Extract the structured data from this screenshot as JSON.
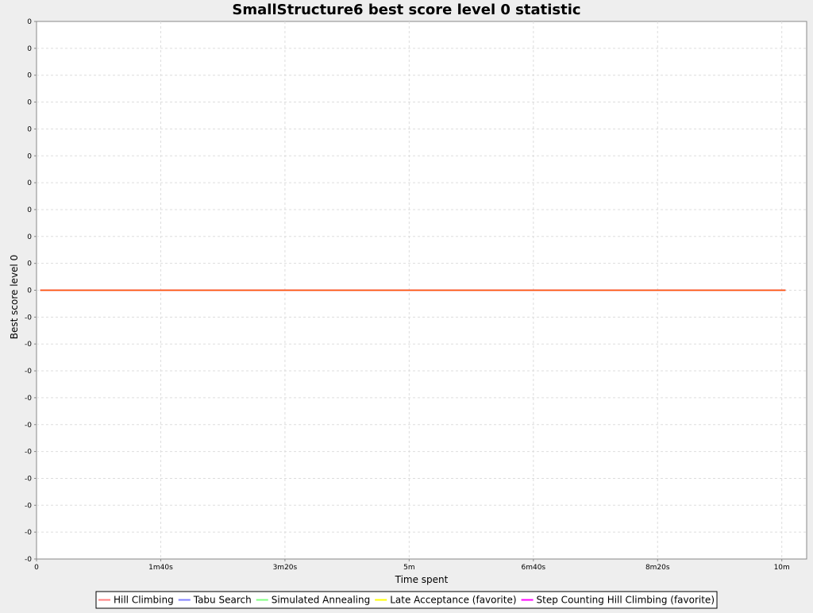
{
  "chart_data": {
    "type": "line",
    "title": "SmallStructure6 best score level 0 statistic",
    "xlabel": "Time spent",
    "ylabel": "Best score level 0",
    "x_ticks": [
      "0",
      "1m40s",
      "3m20s",
      "5m",
      "6m40s",
      "8m20s",
      "10m"
    ],
    "y_ticks": [
      "0",
      "0",
      "0",
      "0",
      "0",
      "0",
      "0",
      "0",
      "0",
      "0",
      "0",
      "-0",
      "-0",
      "-0",
      "-0",
      "-0",
      "-0",
      "-0",
      "-0",
      "-0",
      "-0"
    ],
    "xlim": [
      0,
      620
    ],
    "ylim": [
      -10,
      10
    ],
    "x_unit": "seconds",
    "grid": true,
    "legend_position": "bottom",
    "series": [
      {
        "name": "Hill Climbing",
        "color": "#ff7f7f",
        "x": [
          3,
          603
        ],
        "y": [
          0,
          0
        ]
      },
      {
        "name": "Tabu Search",
        "color": "#7f7fff",
        "x": [
          3,
          603
        ],
        "y": [
          0,
          0
        ]
      },
      {
        "name": "Simulated Annealing",
        "color": "#7fff7f",
        "x": [
          3,
          603
        ],
        "y": [
          0,
          0
        ]
      },
      {
        "name": "Late Acceptance (favorite)",
        "color": "#ffff00",
        "x": [
          3,
          603
        ],
        "y": [
          0,
          0
        ]
      },
      {
        "name": "Step Counting Hill Climbing (favorite)",
        "color": "#ff00ff",
        "x": [
          3,
          603
        ],
        "y": [
          0,
          0
        ]
      }
    ],
    "overlay_line_color": "#ff5500"
  }
}
